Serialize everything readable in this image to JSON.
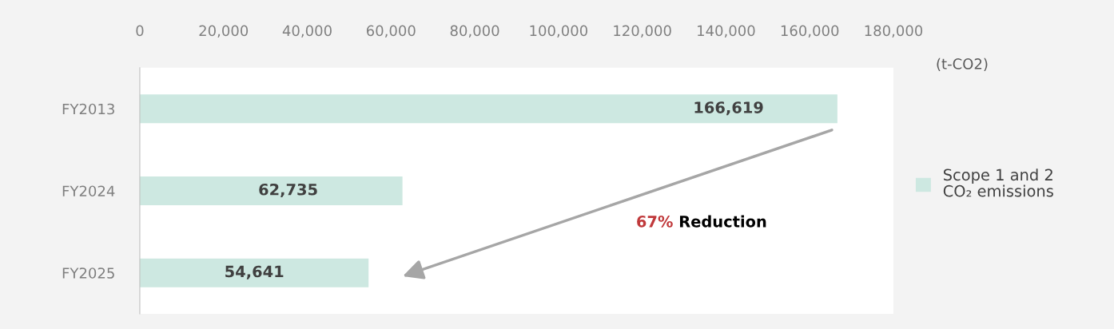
{
  "chart_data": {
    "type": "bar",
    "orientation": "horizontal",
    "categories": [
      "FY2013",
      "FY2024",
      "FY2025"
    ],
    "series": [
      {
        "name": "Scope 1 and 2\nCO₂ emissions",
        "color": "#cde8e1",
        "values": [
          166619,
          62735,
          54641
        ],
        "value_labels": [
          "166,619",
          "62,735",
          "54,641"
        ]
      }
    ],
    "xlim": [
      0,
      180000
    ],
    "xticks": [
      0,
      {
        "value": 20000,
        "label": "20,000"
      },
      {
        "value": 40000,
        "label": "40,000"
      },
      {
        "value": 60000,
        "label": "60,000"
      },
      {
        "value": 80000,
        "label": "80,000"
      },
      {
        "value": 100000,
        "label": "100,000"
      },
      {
        "value": 120000,
        "label": "120,000"
      },
      {
        "value": 140000,
        "label": "140,000"
      },
      {
        "value": 160000,
        "label": "160,000"
      },
      {
        "value": 180000,
        "label": "180,000"
      }
    ],
    "annotations": [
      "(t-CO2)",
      "67%",
      "Reduction"
    ],
    "legend": "right",
    "grid": false
  }
}
